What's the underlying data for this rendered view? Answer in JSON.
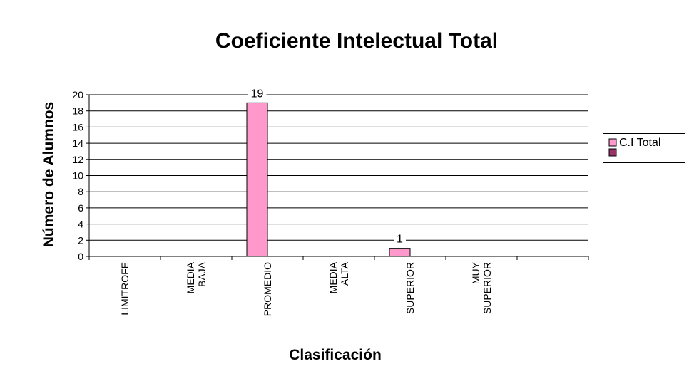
{
  "chart_data": {
    "type": "bar",
    "title": "Coeficiente Intelectual Total",
    "x_label": "Clasificación",
    "y_label": "Número de Alumnos",
    "categories": [
      "LIMITROFE",
      "MEDIA BAJA",
      "PROMEDIO",
      "MEDIA ALTA",
      "SUPERIOR",
      "MUY SUPERIOR",
      null
    ],
    "series": [
      {
        "name": "C.I Total",
        "color": "#ff99cc",
        "values": [
          null,
          null,
          19,
          null,
          1,
          null,
          null
        ]
      },
      {
        "color": "#993366",
        "values": [
          null,
          null,
          null,
          null,
          null,
          null,
          null
        ]
      }
    ],
    "ylim": [
      0,
      20
    ],
    "yticks": [
      0,
      2,
      4,
      6,
      8,
      10,
      12,
      14,
      16,
      18,
      20
    ],
    "grid": true,
    "legend": "right"
  }
}
